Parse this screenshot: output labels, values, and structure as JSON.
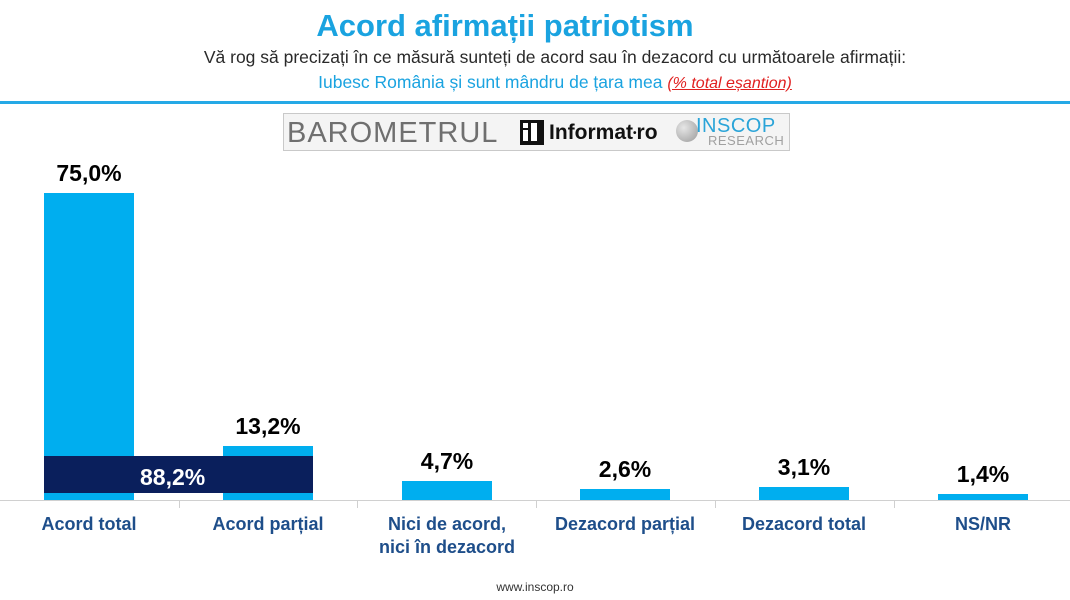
{
  "header": {
    "title": "Acord afirmații patriotism",
    "subtitle": "Vă rog să precizați în ce măsură sunteți de acord sau în dezacord cu următoarele afirmații:",
    "statement": "Iubesc România și sunt mândru de țara mea",
    "note": "(% total eșantion)"
  },
  "logo": {
    "barometru": "BAROMETRUL",
    "informat": "Informat",
    "informat_dot": "•",
    "informat_ro": "ro",
    "inscop": "INSCOP",
    "research": "RESEARCH"
  },
  "chart_data": {
    "type": "bar",
    "title": "Acord afirmații patriotism",
    "categories": [
      "Acord total",
      "Acord parțial",
      "Nici de acord, nici în dezacord",
      "Dezacord parțial",
      "Dezacord total",
      "NS/NR"
    ],
    "values": [
      75.0,
      13.2,
      4.7,
      2.6,
      3.1,
      1.4
    ],
    "value_labels": [
      "75,0%",
      "13,2%",
      "4,7%",
      "2,6%",
      "3,1%",
      "1,4%"
    ],
    "combined_label": "88,2%",
    "combined_value": 88.2,
    "ylim": [
      0,
      80
    ],
    "unit": "%",
    "colors": {
      "bar": "#00aeef",
      "combined": "#0a1f5c"
    }
  },
  "footer": {
    "url": "www.inscop.ro"
  }
}
